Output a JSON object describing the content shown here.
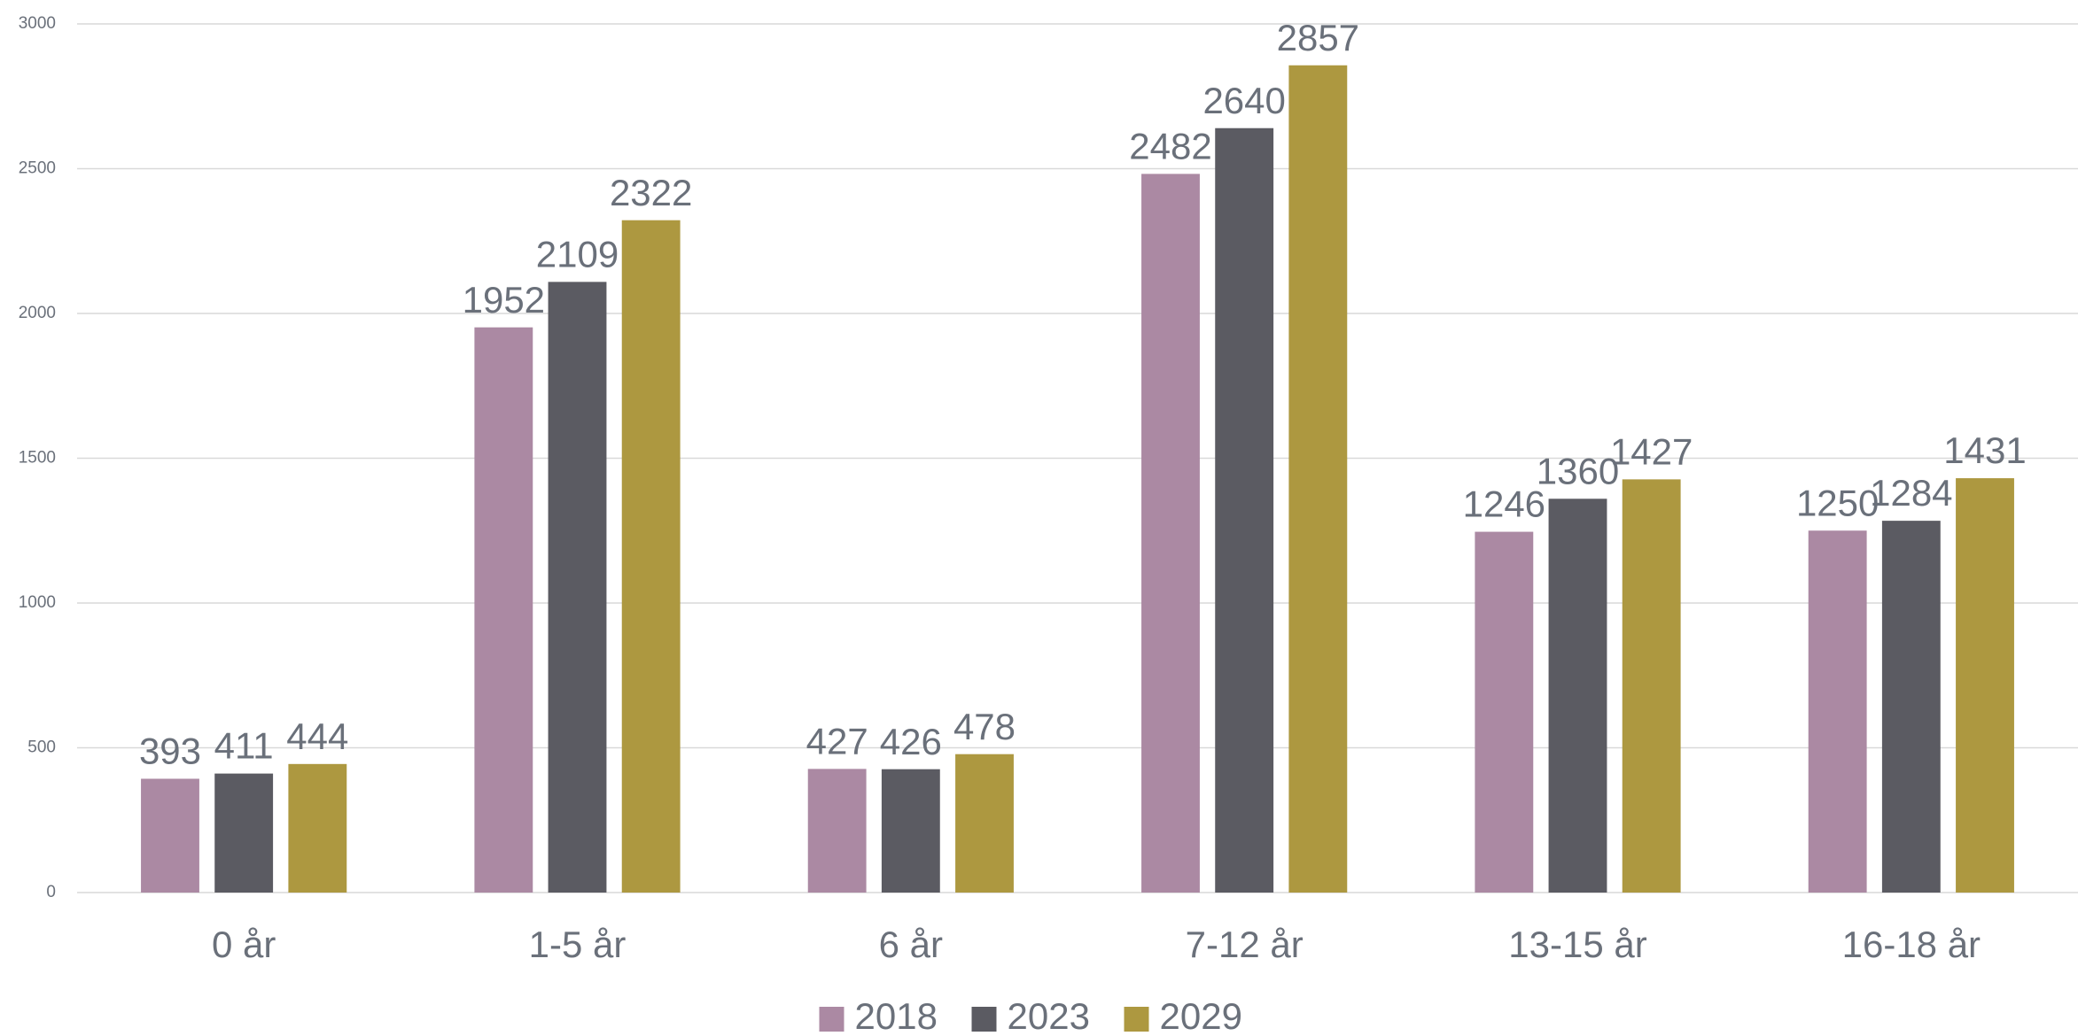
{
  "chart_data": {
    "type": "bar",
    "categories": [
      "0 år",
      "1-5 år",
      "6 år",
      "7-12 år",
      "13-15 år",
      "16-18 år"
    ],
    "series": [
      {
        "name": "2018",
        "color": "#ab89a3",
        "values": [
          393,
          1952,
          427,
          2482,
          1246,
          1250
        ]
      },
      {
        "name": "2023",
        "color": "#5b5b62",
        "values": [
          411,
          2109,
          426,
          2640,
          1360,
          1284
        ]
      },
      {
        "name": "2029",
        "color": "#ad9840",
        "values": [
          444,
          2322,
          478,
          2857,
          1427,
          1431
        ]
      }
    ],
    "ylim": [
      0,
      3000
    ],
    "yticks": [
      0,
      500,
      1000,
      1500,
      2000,
      2500,
      3000
    ],
    "grid": true,
    "legend": "bottom"
  }
}
